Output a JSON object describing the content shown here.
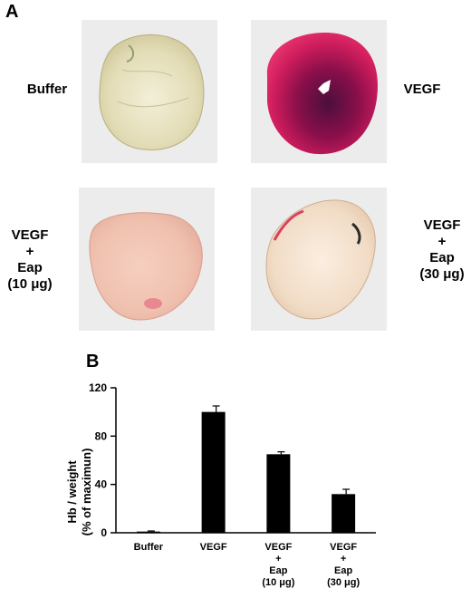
{
  "panels": {
    "a": {
      "letter": "A"
    },
    "b": {
      "letter": "B"
    }
  },
  "photos": {
    "buffer": {
      "label_lines": [
        "Buffer"
      ]
    },
    "vegf": {
      "label_lines": [
        "VEGF"
      ]
    },
    "vegf_eap10": {
      "label_lines": [
        "VEGF",
        "+",
        "Eap",
        "(10 μg)"
      ]
    },
    "vegf_eap30": {
      "label_lines": [
        "VEGF",
        "+",
        "Eap",
        "(30 μg)"
      ]
    }
  },
  "chart_data": {
    "type": "bar",
    "categories": [
      [
        "Buffer"
      ],
      [
        "VEGF"
      ],
      [
        "VEGF",
        "+",
        "Eap",
        "(10 μg)"
      ],
      [
        "VEGF",
        "+",
        "Eap",
        "(30 μg)"
      ]
    ],
    "values": [
      1,
      100,
      65,
      32
    ],
    "errors": [
      0.5,
      5,
      2,
      4
    ],
    "ylabel_lines": [
      "Hb / weight",
      "(% of maximun)"
    ],
    "xlabel": "",
    "ylim": [
      0,
      120
    ],
    "yticks": [
      0,
      40,
      80,
      120
    ],
    "grid": false,
    "legend": "none",
    "bar_color": "#000000"
  }
}
